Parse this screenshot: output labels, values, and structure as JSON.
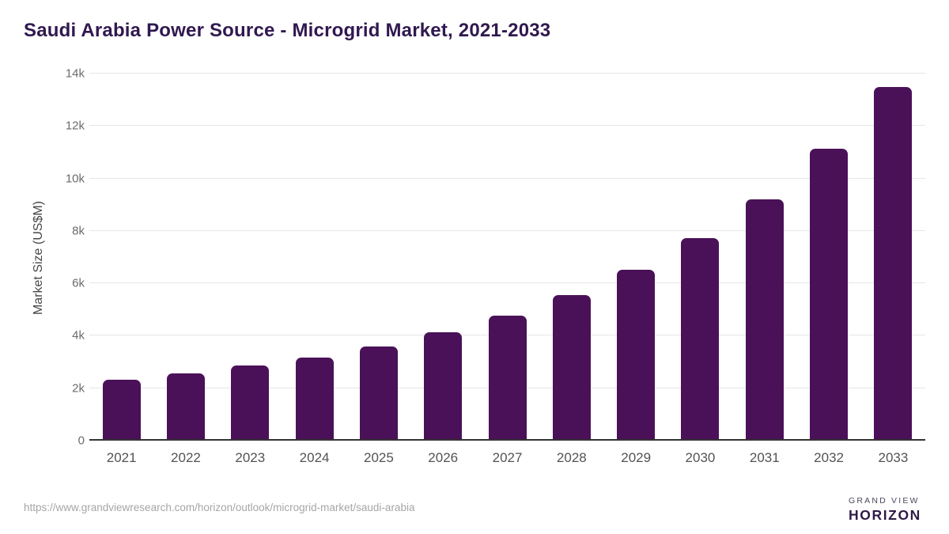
{
  "header": {
    "title": "Saudi Arabia Power Source - Microgrid Market, 2021-2033"
  },
  "chart_data": {
    "type": "bar",
    "title": "Saudi Arabia Power Source - Microgrid Market, 2021-2033",
    "categories": [
      "2021",
      "2022",
      "2023",
      "2024",
      "2025",
      "2026",
      "2027",
      "2028",
      "2029",
      "2030",
      "2031",
      "2032",
      "2033"
    ],
    "values": [
      2310,
      2560,
      2870,
      3170,
      3600,
      4120,
      4760,
      5540,
      6520,
      7720,
      9210,
      11120,
      13490
    ],
    "xlabel": "",
    "ylabel": "Market Size (US$M)",
    "ylim": [
      0,
      14000
    ],
    "yticks": [
      0,
      2000,
      4000,
      6000,
      8000,
      10000,
      12000,
      14000
    ],
    "ytick_labels": [
      "0",
      "2k",
      "4k",
      "6k",
      "8k",
      "10k",
      "12k",
      "14k"
    ],
    "grid": true,
    "legend": false,
    "bar_color": "#4a1158"
  },
  "footer": {
    "source_url": "https://www.grandviewresearch.com/horizon/outlook/microgrid-market/saudi-arabia",
    "logo": {
      "line1": "GRAND VIEW",
      "line2": "HORIZON",
      "icon": "horizon-sunrise-icon",
      "icon_top_color": "#2d1b4a",
      "icon_bottom_color": "#5cc2f0"
    }
  },
  "colors": {
    "title_text": "#311850",
    "bar": "#4a1158",
    "gridline": "#e6e6e6",
    "axis_line": "#333333",
    "tick_text": "#6b6b6b",
    "xlabel_text": "#535356",
    "source_text": "#a6a6a6"
  }
}
